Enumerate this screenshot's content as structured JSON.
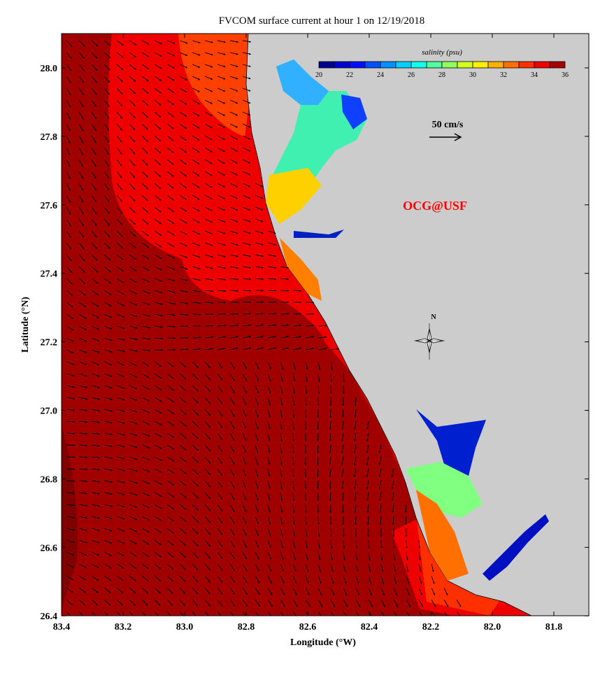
{
  "title": "FVCOM surface current at hour 1 on 12/19/2018",
  "xlabel": "Longitude (°W)",
  "ylabel": "Latitude (°N)",
  "x_ticks": [
    "83.4",
    "83.2",
    "83.0",
    "82.8",
    "82.6",
    "82.4",
    "82.2",
    "82.0",
    "81.8"
  ],
  "y_ticks": [
    "28.0",
    "27.8",
    "27.6",
    "27.4",
    "27.2",
    "27.0",
    "26.8",
    "26.6",
    "26.4"
  ],
  "colorbar": {
    "label": "salinity (psu)",
    "ticks": [
      "20",
      "22",
      "24",
      "26",
      "28",
      "30",
      "32",
      "34",
      "36"
    ],
    "colors": [
      "#000090",
      "#0000d0",
      "#0010ff",
      "#0050ff",
      "#0090ff",
      "#00d0ff",
      "#10ffef",
      "#50ffa0",
      "#90ff60",
      "#d0ff20",
      "#ffef00",
      "#ffb000",
      "#ff7000",
      "#ff3000",
      "#f00000",
      "#a80000"
    ]
  },
  "scale_arrow_label": "50 cm/s",
  "watermark": "OCG@USF",
  "compass_label": "N",
  "colors": {
    "land": "#cccccc",
    "offshore": "#a00000",
    "midshelf": "#ee0000",
    "nearshore": "#ff4000",
    "watermark": "#ff0000"
  }
}
